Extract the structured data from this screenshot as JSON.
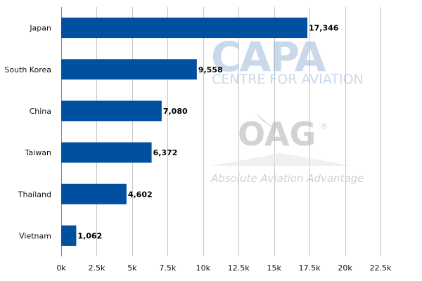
{
  "chart_data": {
    "type": "bar",
    "orientation": "horizontal",
    "categories": [
      "Japan",
      "South Korea",
      "China",
      "Taiwan",
      "Thailand",
      "Vietnam"
    ],
    "values": [
      17346,
      9558,
      7080,
      6372,
      4602,
      1062
    ],
    "value_labels": [
      "17,346",
      "9,558",
      "7,080",
      "6,372",
      "4,602",
      "1,062"
    ],
    "xlim": [
      0,
      22500
    ],
    "xticks": [
      0,
      2500,
      5000,
      7500,
      10000,
      12500,
      15000,
      17500,
      20000,
      22500
    ],
    "xtick_labels": [
      "0k",
      "2.5k",
      "5k",
      "7.5k",
      "10k",
      "12.5k",
      "15k",
      "17.5k",
      "20k",
      "22.5k"
    ],
    "grid": "vertical",
    "bar_color": "#0050a0",
    "title": "",
    "xlabel": "",
    "ylabel": ""
  },
  "watermarks": {
    "capa_text": "CAPA",
    "capa_subtext": "CENTRE FOR AVIATION",
    "oag_text": "OAG",
    "oag_registered": "®",
    "oag_tagline": "Absolute Aviation Advantage"
  }
}
